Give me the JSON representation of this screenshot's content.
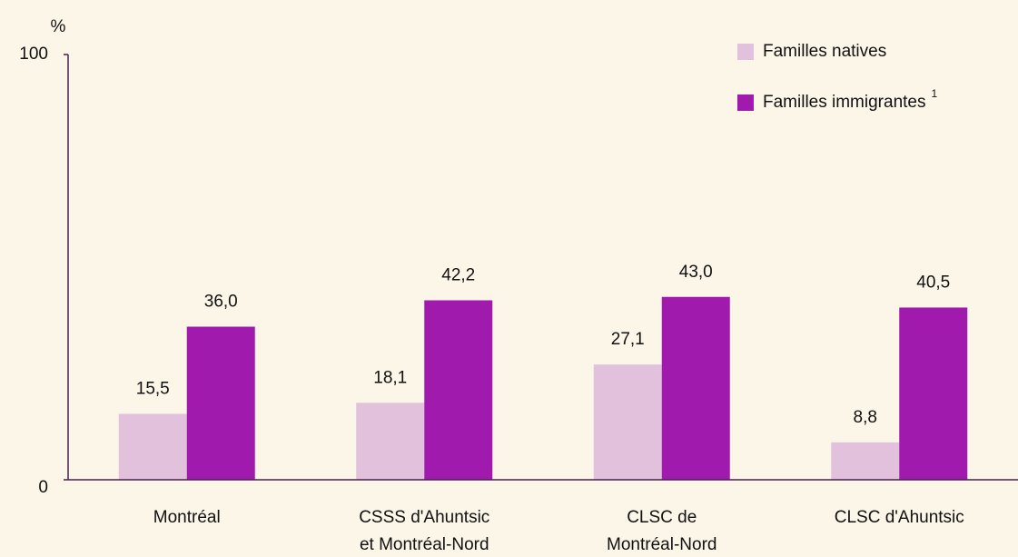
{
  "chart_data": {
    "type": "bar",
    "y_unit": "%",
    "categories": [
      "Montréal",
      "CSSS d'Ahuntsic\net Montréal-Nord",
      "CLSC de\nMontréal-Nord",
      "CLSC d'Ahuntsic"
    ],
    "series": [
      {
        "name": "Familles natives",
        "color": "#e1c1dc",
        "values": [
          15.5,
          18.1,
          27.1,
          8.8
        ],
        "value_labels": [
          "15,5",
          "18,1",
          "27,1",
          "8,8"
        ]
      },
      {
        "name": "Familles immigrantes",
        "footnote": "1",
        "color": "#a01aae",
        "values": [
          36.0,
          42.2,
          43.0,
          40.5
        ],
        "value_labels": [
          "36,0",
          "42,2",
          "43,0",
          "40,5"
        ]
      }
    ],
    "ylim": [
      0,
      100
    ],
    "yticks": [
      0,
      100
    ],
    "grid": false,
    "legend": "top-right"
  }
}
